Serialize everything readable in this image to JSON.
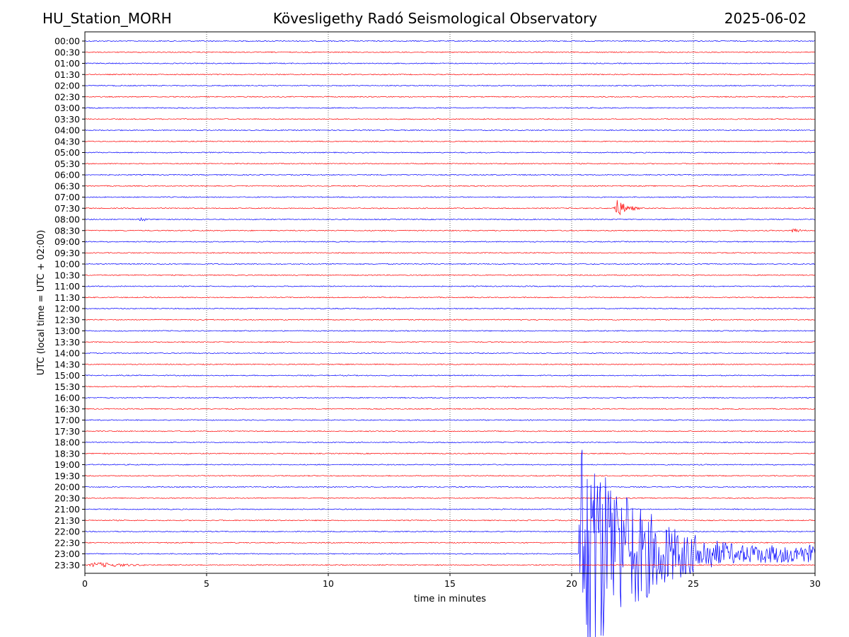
{
  "header": {
    "station": "HU_Station_MORH",
    "observatory": "Kövesligethy Radó Seismological Observatory",
    "date": "2025-06-02"
  },
  "chart_data": {
    "type": "line",
    "title": "Kövesligethy Radó Seismological Observatory",
    "xlabel": "time in minutes",
    "ylabel": "UTC (local time = UTC + 02:00)",
    "xlim": [
      0,
      30
    ],
    "x_ticks": [
      "0",
      "5",
      "10",
      "15",
      "20",
      "25",
      "30"
    ],
    "grid": "vertical dotted at x = 5, 10, 15, 20, 25",
    "trace_colors": [
      "#0000ff",
      "#ff0000"
    ],
    "trace_color_rule": "alternating blue (full hour) / red (half hour)",
    "row_labels": [
      "00:00",
      "00:30",
      "01:00",
      "01:30",
      "02:00",
      "02:30",
      "03:00",
      "03:30",
      "04:00",
      "04:30",
      "05:00",
      "05:30",
      "06:00",
      "06:30",
      "07:00",
      "07:30",
      "08:00",
      "08:30",
      "09:00",
      "09:30",
      "10:00",
      "10:30",
      "11:00",
      "11:30",
      "12:00",
      "12:30",
      "13:00",
      "13:30",
      "14:00",
      "14:30",
      "15:00",
      "15:30",
      "16:00",
      "16:30",
      "17:00",
      "17:30",
      "18:00",
      "18:30",
      "19:00",
      "19:30",
      "20:00",
      "20:30",
      "21:00",
      "21:30",
      "22:00",
      "22:30",
      "23:00",
      "23:30"
    ],
    "events": [
      {
        "row": "07:30",
        "start_min": 21.7,
        "end_min": 23.0,
        "amplitude": "medium"
      },
      {
        "row": "08:00",
        "start_min": 2.2,
        "end_min": 3.0,
        "amplitude": "small"
      },
      {
        "row": "08:30",
        "start_min": 29.0,
        "end_min": 30.0,
        "amplitude": "small"
      },
      {
        "row": "23:00",
        "start_min": 20.3,
        "end_min": 30.0,
        "amplitude": "very large"
      },
      {
        "row": "23:30",
        "start_min": 0.0,
        "end_min": 4.5,
        "amplitude": "small"
      }
    ]
  }
}
